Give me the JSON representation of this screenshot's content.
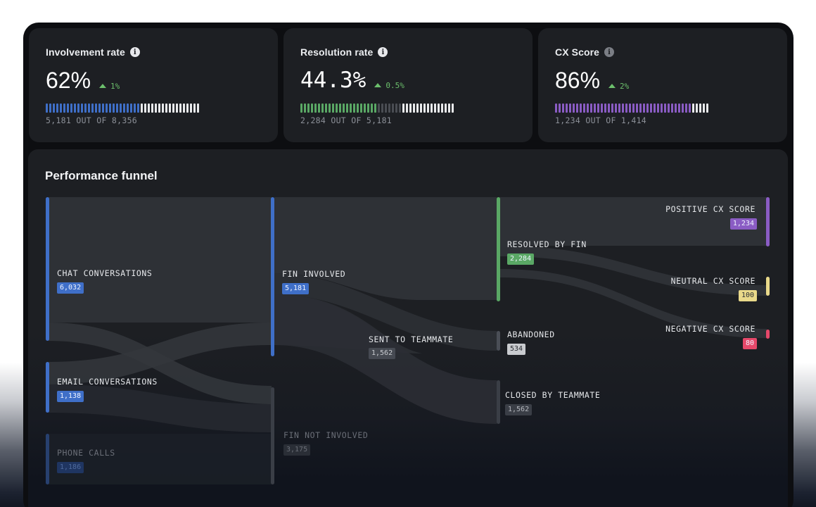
{
  "cards": [
    {
      "title": "Involvement rate",
      "info_icon": "info-icon",
      "value": "62%",
      "delta": "1%",
      "delta_direction": "up",
      "sub": "5,181 OUT OF 8,356",
      "bar": {
        "total_ticks": 44,
        "segments": [
          {
            "count": 27,
            "color": "#3f6fc8"
          },
          {
            "count": 17,
            "color": "#e9eaec"
          }
        ]
      }
    },
    {
      "title": "Resolution rate",
      "info_icon": "info-icon",
      "value": "44.3%",
      "delta": "0.5%",
      "delta_direction": "up",
      "sub": "2,284 OUT OF 5,181",
      "bar": {
        "total_ticks": 44,
        "segments": [
          {
            "count": 22,
            "color": "#5aa865"
          },
          {
            "count": 7,
            "color": "#4a4d53"
          },
          {
            "count": 15,
            "color": "#e9eaec"
          }
        ]
      }
    },
    {
      "title": "CX Score",
      "info_icon": "info-icon",
      "value": "86%",
      "delta": "2%",
      "delta_direction": "up",
      "sub": "1,234 OUT OF 1,414",
      "bar": {
        "total_ticks": 44,
        "segments": [
          {
            "count": 39,
            "color": "#8a5cc4"
          },
          {
            "count": 5,
            "color": "#e9eaec"
          }
        ]
      }
    }
  ],
  "funnel": {
    "title": "Performance funnel",
    "nodes": {
      "chat": {
        "label": "CHAT CONVERSATIONS",
        "value": "6,032",
        "color": "#3f6fc8"
      },
      "email": {
        "label": "EMAIL CONVERSATIONS",
        "value": "1,138",
        "color": "#3f6fc8"
      },
      "phone": {
        "label": "PHONE CALLS",
        "value": "1,186",
        "color": "#27406f"
      },
      "fin_involved": {
        "label": "FIN INVOLVED",
        "value": "5,181",
        "color": "#3f6fc8"
      },
      "fin_not_involved": {
        "label": "FIN NOT INVOLVED",
        "value": "3,175",
        "color": "#3a3e46"
      },
      "sent_to_teammate": {
        "label": "SENT TO TEAMMATE",
        "value": "1,562",
        "color": "#464a52"
      },
      "resolved_by_fin": {
        "label": "RESOLVED BY FIN",
        "value": "2,284",
        "color": "#5aa865"
      },
      "abandoned": {
        "label": "ABANDONED",
        "value": "534",
        "color": "#c9cbcf"
      },
      "closed_by_teammate": {
        "label": "CLOSED BY TEAMMATE",
        "value": "1,562",
        "color": "#464a52"
      },
      "positive_cx": {
        "label": "POSITIVE CX SCORE",
        "value": "1,234",
        "color": "#8a5cc4"
      },
      "neutral_cx": {
        "label": "NEUTRAL CX SCORE",
        "value": "100",
        "color": "#e9d98a"
      },
      "negative_cx": {
        "label": "NEGATIVE CX SCORE",
        "value": "80",
        "color": "#e5486a"
      }
    }
  }
}
